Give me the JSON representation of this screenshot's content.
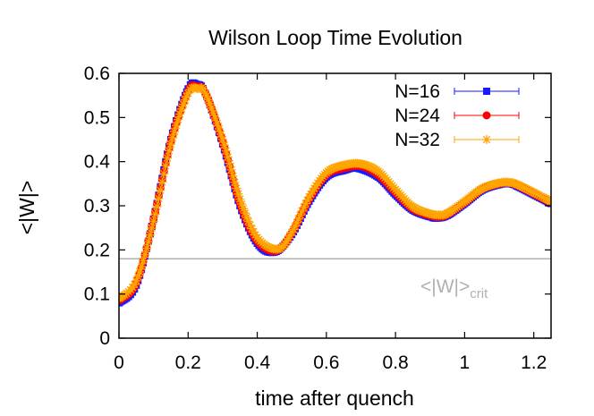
{
  "chart_data": {
    "type": "line",
    "title": "Wilson Loop Time Evolution",
    "xlabel": "time after quench",
    "ylabel": "<|W|>",
    "xlim": [
      0,
      1.25
    ],
    "ylim": [
      0,
      0.6
    ],
    "xticks": [
      0,
      0.2,
      0.4,
      0.6,
      0.8,
      1,
      1.2
    ],
    "xtick_labels": [
      "0",
      "0.2",
      "0.4",
      "0.6",
      "0.8",
      "1",
      "1.2"
    ],
    "yticks": [
      0,
      0.1,
      0.2,
      0.3,
      0.4,
      0.5,
      0.6
    ],
    "ytick_labels": [
      "0",
      "0.1",
      "0.2",
      "0.3",
      "0.4",
      "0.5",
      "0.6"
    ],
    "legend_position": "top-right",
    "reference_line": {
      "value": 0.18,
      "label_main": "<|W|>",
      "label_sub": "crit",
      "color": "#b0b0b0"
    },
    "series": [
      {
        "name": "N=16",
        "color": "#1a1aff",
        "marker": "square",
        "x": [
          0,
          0.05,
          0.1,
          0.15,
          0.2,
          0.225,
          0.25,
          0.3,
          0.35,
          0.4,
          0.45,
          0.5,
          0.55,
          0.6,
          0.65,
          0.69,
          0.75,
          0.8,
          0.85,
          0.9,
          0.92,
          0.95,
          1.0,
          1.05,
          1.1,
          1.13,
          1.15,
          1.2,
          1.25
        ],
        "y": [
          0.08,
          0.12,
          0.27,
          0.45,
          0.565,
          0.575,
          0.555,
          0.44,
          0.3,
          0.215,
          0.195,
          0.235,
          0.31,
          0.365,
          0.38,
          0.385,
          0.365,
          0.325,
          0.29,
          0.275,
          0.272,
          0.278,
          0.305,
          0.335,
          0.348,
          0.35,
          0.345,
          0.325,
          0.305
        ]
      },
      {
        "name": "N=24",
        "color": "#ff0000",
        "marker": "circle",
        "x": [
          0,
          0.05,
          0.1,
          0.15,
          0.2,
          0.225,
          0.25,
          0.3,
          0.35,
          0.4,
          0.455,
          0.5,
          0.55,
          0.6,
          0.65,
          0.7,
          0.75,
          0.8,
          0.85,
          0.9,
          0.925,
          0.95,
          1.0,
          1.05,
          1.1,
          1.13,
          1.15,
          1.2,
          1.25
        ],
        "y": [
          0.085,
          0.125,
          0.27,
          0.445,
          0.56,
          0.57,
          0.555,
          0.445,
          0.305,
          0.22,
          0.198,
          0.238,
          0.315,
          0.37,
          0.385,
          0.39,
          0.37,
          0.33,
          0.293,
          0.278,
          0.275,
          0.28,
          0.307,
          0.337,
          0.35,
          0.352,
          0.347,
          0.327,
          0.307
        ]
      },
      {
        "name": "N=32",
        "color": "#ffa500",
        "marker": "star",
        "x": [
          0,
          0.05,
          0.1,
          0.15,
          0.2,
          0.23,
          0.25,
          0.3,
          0.35,
          0.4,
          0.46,
          0.5,
          0.55,
          0.6,
          0.65,
          0.7,
          0.75,
          0.8,
          0.85,
          0.9,
          0.93,
          0.95,
          1.0,
          1.05,
          1.1,
          1.13,
          1.15,
          1.2,
          1.25
        ],
        "y": [
          0.09,
          0.13,
          0.265,
          0.44,
          0.555,
          0.565,
          0.555,
          0.45,
          0.315,
          0.228,
          0.202,
          0.24,
          0.32,
          0.375,
          0.392,
          0.395,
          0.378,
          0.337,
          0.298,
          0.282,
          0.279,
          0.283,
          0.31,
          0.339,
          0.352,
          0.353,
          0.349,
          0.33,
          0.31
        ]
      }
    ]
  }
}
